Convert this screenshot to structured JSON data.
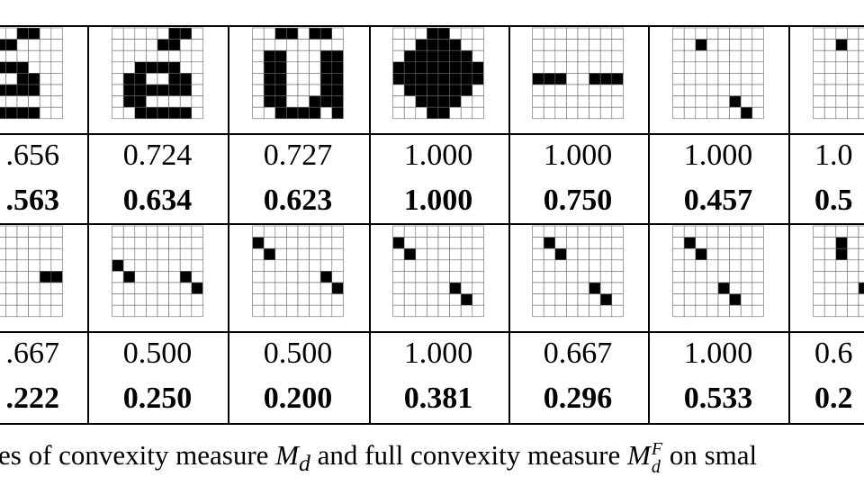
{
  "table": {
    "rows": [
      [
        ".656",
        "0.724",
        "0.727",
        "1.000",
        "1.000",
        "1.000",
        "1.0"
      ],
      [
        ".563",
        "0.634",
        "0.623",
        "1.000",
        "0.750",
        "0.457",
        "0.5"
      ],
      [
        ".667",
        "0.500",
        "0.500",
        "1.000",
        "0.667",
        "1.000",
        "0.6"
      ],
      [
        ".222",
        "0.250",
        "0.200",
        "0.381",
        "0.296",
        "0.533",
        "0.2"
      ]
    ],
    "bold_rows": [
      false,
      true,
      false,
      true
    ]
  },
  "caption": {
    "text1": "es of convexity measure ",
    "m1": "M",
    "m1_sub": "d",
    "text2": " and full convexity measure ",
    "m2": "M",
    "m2_sub": "d",
    "m2_sup": "F",
    "text3": " on smal"
  }
}
